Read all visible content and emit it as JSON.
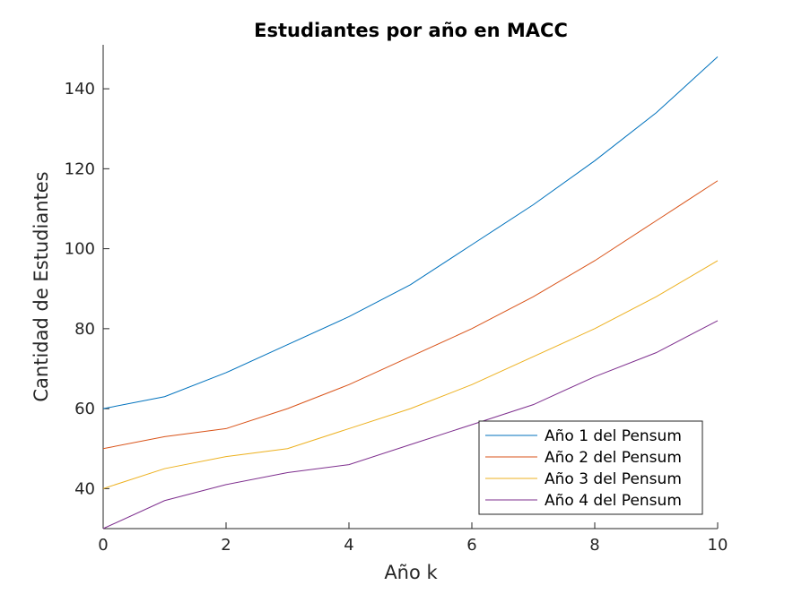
{
  "chart_data": {
    "type": "line",
    "title": "Estudiantes por año en MACC",
    "xlabel": "Año k",
    "ylabel": "Cantidad de Estudiantes",
    "xlim": [
      0,
      10
    ],
    "ylim": [
      30,
      151
    ],
    "x_ticks": [
      0,
      2,
      4,
      6,
      8,
      10
    ],
    "y_ticks": [
      40,
      60,
      80,
      100,
      120,
      140
    ],
    "grid": false,
    "legend_position": "bottom-right",
    "x": [
      0,
      1,
      2,
      3,
      4,
      5,
      6,
      7,
      8,
      9,
      10
    ],
    "series": [
      {
        "name": "Año 1 del Pensum",
        "color": "#0072BD",
        "values": [
          60,
          63,
          69,
          76,
          83,
          91,
          101,
          111,
          122,
          134,
          148
        ]
      },
      {
        "name": "Año 2 del Pensum",
        "color": "#D95319",
        "values": [
          50,
          53,
          55,
          60,
          66,
          73,
          80,
          88,
          97,
          107,
          117
        ]
      },
      {
        "name": "Año 3 del Pensum",
        "color": "#EDB120",
        "values": [
          40,
          45,
          48,
          50,
          55,
          60,
          66,
          73,
          80,
          88,
          97
        ]
      },
      {
        "name": "Año 4 del Pensum",
        "color": "#7E2F8E",
        "values": [
          30,
          37,
          41,
          44,
          46,
          51,
          56,
          61,
          68,
          74,
          82
        ]
      }
    ]
  }
}
